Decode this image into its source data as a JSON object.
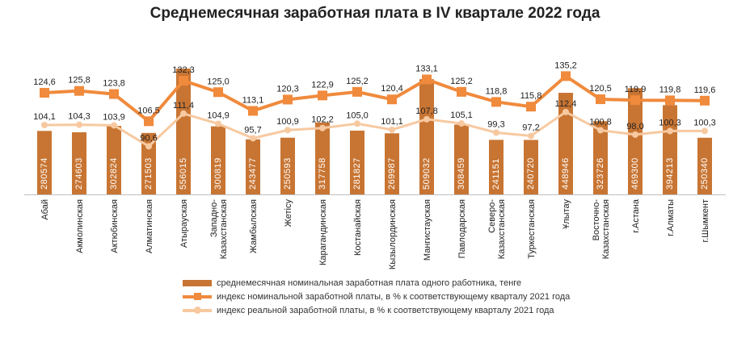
{
  "chart_data": {
    "type": "bar",
    "title": "Среднемесячная заработная плата в IV квартале 2022 года",
    "categories": [
      "Абай",
      "Акмолинская",
      "Актюбинская",
      "Алматинская",
      "Атырауская",
      "Западно-Казахстанская",
      "Жамбылская",
      "Жетісу",
      "Карагандинская",
      "Костанайская",
      "Кызылординская",
      "Мангистауская",
      "Павлодарская",
      "Северо-Казахстанская",
      "Туркестанская",
      "Ұлытау",
      "Восточно-Казахстанская",
      "г.Астана",
      "г.Алматы",
      "г.Шымкент"
    ],
    "category_lines": [
      [
        "Абай"
      ],
      [
        "Акмолинская"
      ],
      [
        "Актюбинская"
      ],
      [
        "Алматинская"
      ],
      [
        "Атырауская"
      ],
      [
        "Западно-",
        "Казахстанская"
      ],
      [
        "Жамбылская"
      ],
      [
        "Жетісу"
      ],
      [
        "Карагандинская"
      ],
      [
        "Костанайская"
      ],
      [
        "Кызылординская"
      ],
      [
        "Мангистауская"
      ],
      [
        "Павлодарская"
      ],
      [
        "Северо-",
        "Казахстанская"
      ],
      [
        "Туркестанская"
      ],
      [
        "Ұлытау"
      ],
      [
        "Восточно-",
        "Казахстанская"
      ],
      [
        "г.Астана"
      ],
      [
        "г.Алматы"
      ],
      [
        "г.Шымкент"
      ]
    ],
    "series": [
      {
        "name": "среднемесячная номинальная заработная плата одного работника, тенге",
        "kind": "bar",
        "color": "#c87533",
        "values": [
          280574,
          274603,
          302824,
          271503,
          556015,
          300819,
          243477,
          250593,
          317758,
          281827,
          269987,
          509032,
          308459,
          241151,
          240720,
          448946,
          323726,
          469300,
          394213,
          250340
        ],
        "labels": [
          "280574",
          "274603",
          "302824",
          "271503",
          "556015",
          "300819",
          "243477",
          "250593",
          "317758",
          "281827",
          "269987",
          "509032",
          "308459",
          "241151",
          "240720",
          "448946",
          "323726",
          "469300",
          "394213",
          "250340"
        ]
      },
      {
        "name": "индекс номинальной заработной платы, в % к соответствующему кварталу 2021 года",
        "kind": "line",
        "color": "#f08a3c",
        "values": [
          124.6,
          125.8,
          123.8,
          106.5,
          132.3,
          125.0,
          113.1,
          120.3,
          122.9,
          125.2,
          120.4,
          133.1,
          125.2,
          118.8,
          115.8,
          135.2,
          120.5,
          119.9,
          119.8,
          119.6
        ],
        "labels": [
          "124,6",
          "125,8",
          "123,8",
          "106,5",
          "132,3",
          "125,0",
          "113,1",
          "120,3",
          "122,9",
          "125,2",
          "120,4",
          "133,1",
          "125,2",
          "118,8",
          "115,8",
          "135,2",
          "120,5",
          "119,9",
          "119,8",
          "119,6"
        ]
      },
      {
        "name": "индекс реальной заработной платы, в % к соответствующему кварталу 2021 года",
        "kind": "line",
        "color": "#f7c9a0",
        "values": [
          104.1,
          104.3,
          103.9,
          90.6,
          111.4,
          104.9,
          95.7,
          100.9,
          102.2,
          105.0,
          101.1,
          107.8,
          105.1,
          99.3,
          97.2,
          112.4,
          100.8,
          98.0,
          100.3,
          100.3
        ],
        "labels": [
          "104,1",
          "104,3",
          "103,9",
          "90,6",
          "111,4",
          "104,9",
          "95,7",
          "100,9",
          "102,2",
          "105,0",
          "101,1",
          "107,8",
          "105,1",
          "99,3",
          "97,2",
          "112,4",
          "100,8",
          "98,0",
          "100,3",
          "100,3"
        ]
      }
    ],
    "bar_axis": {
      "min": 0,
      "max": 556015
    },
    "index_axis": {
      "min": 60,
      "max": 140
    },
    "grid": false,
    "legend_position": "bottom"
  }
}
